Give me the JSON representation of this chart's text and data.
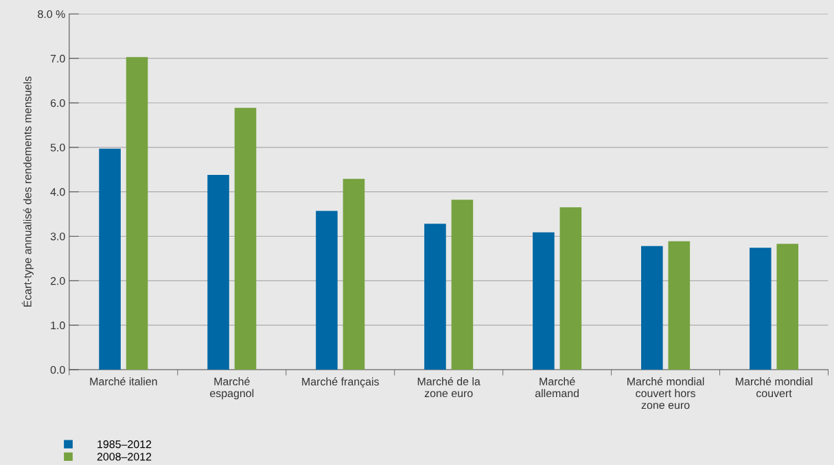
{
  "chart_data": {
    "type": "bar",
    "ylabel": "Écart-type annualisé des rendements mensuels",
    "categories": [
      "Marché italien",
      "Marché\nespagnol",
      "Marché français",
      "Marché de la\nzone euro",
      "Marché\nallemand",
      "Marché mondial\ncouvert hors\nzone euro",
      "Marché mondial\ncouvert"
    ],
    "series": [
      {
        "name": "1985–2012",
        "color": "#0068a5",
        "values": [
          4.97,
          4.38,
          3.57,
          3.28,
          3.09,
          2.78,
          2.74
        ]
      },
      {
        "name": "2008–2012",
        "color": "#76a23f",
        "values": [
          7.03,
          5.89,
          4.29,
          3.82,
          3.65,
          2.89,
          2.83
        ]
      }
    ],
    "ylim": [
      0,
      8
    ],
    "yticks": [
      {
        "value": 0,
        "label": "0.0"
      },
      {
        "value": 1,
        "label": "1.0"
      },
      {
        "value": 2,
        "label": "2.0"
      },
      {
        "value": 3,
        "label": "3.0"
      },
      {
        "value": 4,
        "label": "4.0"
      },
      {
        "value": 5,
        "label": "5.0"
      },
      {
        "value": 6,
        "label": "6.0"
      },
      {
        "value": 7,
        "label": "7.0"
      },
      {
        "value": 8,
        "label": "8.0 %"
      }
    ],
    "grid": "y",
    "legend": "bottom left"
  }
}
